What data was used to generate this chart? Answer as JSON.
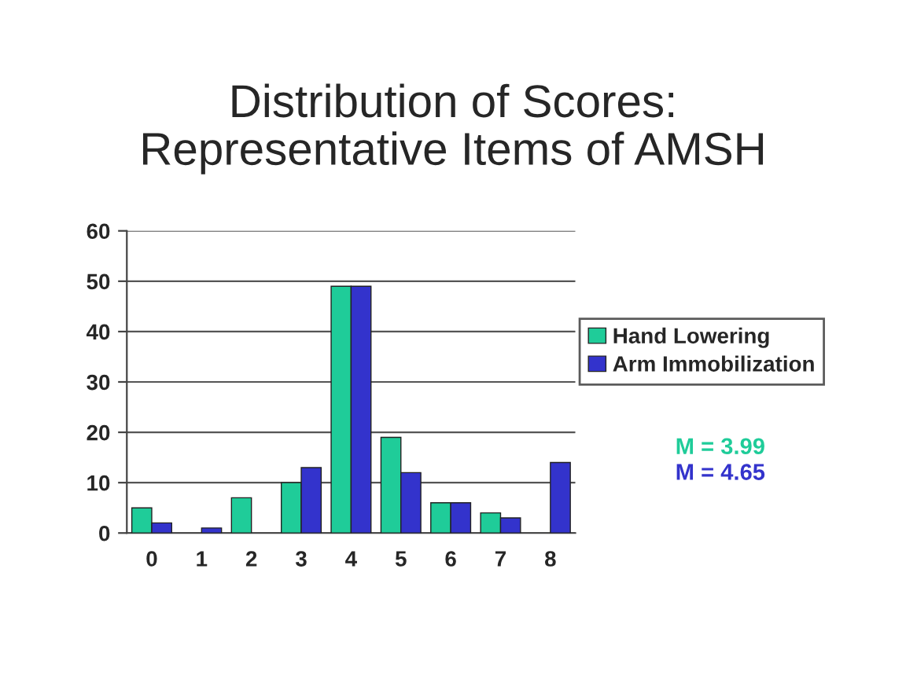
{
  "chart_data": {
    "type": "bar",
    "title": "Distribution of Scores:\nRepresentative Items of AMSH",
    "categories": [
      "0",
      "1",
      "2",
      "3",
      "4",
      "5",
      "6",
      "7",
      "8"
    ],
    "series": [
      {
        "name": "Hand Lowering",
        "color": "#1fcc99",
        "values": [
          5,
          0,
          7,
          10,
          49,
          19,
          6,
          4,
          0
        ]
      },
      {
        "name": "Arm Immobilization",
        "color": "#3333cc",
        "values": [
          2,
          1,
          0,
          13,
          49,
          12,
          6,
          3,
          14
        ]
      }
    ],
    "ylim": [
      0,
      60
    ],
    "yticks": [
      0,
      10,
      20,
      30,
      40,
      50,
      60
    ],
    "grid": "y",
    "legend": "right",
    "annotations": [
      "M = 3.99",
      "M = 4.65"
    ]
  }
}
